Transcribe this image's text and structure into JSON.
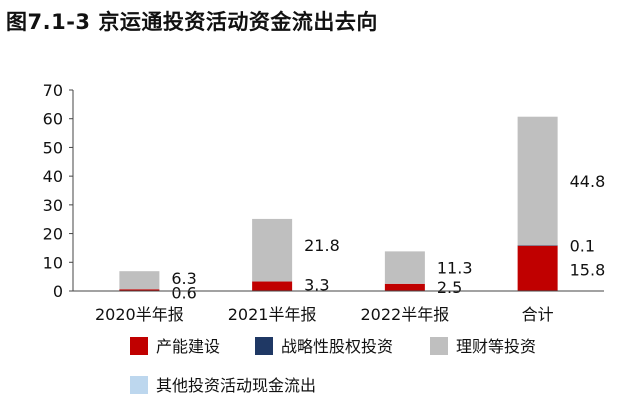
{
  "title": "图7.1-3 京运通投资活动资金流出去向",
  "chart_data": {
    "type": "bar",
    "stacked": true,
    "categories": [
      "2020半年报",
      "2021半年报",
      "2022半年报",
      "合计"
    ],
    "ylim": [
      0,
      70
    ],
    "yticks": [
      "0",
      "10",
      "20",
      "30",
      "40",
      "50",
      "60",
      "70"
    ],
    "grid": false,
    "legend_position": "bottom",
    "series": [
      {
        "name": "产能建设",
        "color": "#c00000",
        "values": [
          0.6,
          3.3,
          2.5,
          15.8
        ],
        "labels": [
          "0.6",
          "3.3",
          "2.5",
          "15.8"
        ]
      },
      {
        "name": "战略性股权投资",
        "color": "#1f3864",
        "values": [
          0,
          0,
          0,
          0.1
        ],
        "labels": [
          "",
          "",
          "",
          "0.1"
        ]
      },
      {
        "name": "理财等投资",
        "color": "#bfbfbf",
        "values": [
          6.3,
          21.8,
          11.3,
          44.8
        ],
        "labels": [
          "6.3",
          "21.8",
          "11.3",
          "44.8"
        ]
      },
      {
        "name": "其他投资活动现金流出",
        "color": "#bdd7ee",
        "values": [
          0,
          0,
          0,
          0
        ],
        "labels": [
          "",
          "",
          "",
          ""
        ]
      }
    ]
  }
}
